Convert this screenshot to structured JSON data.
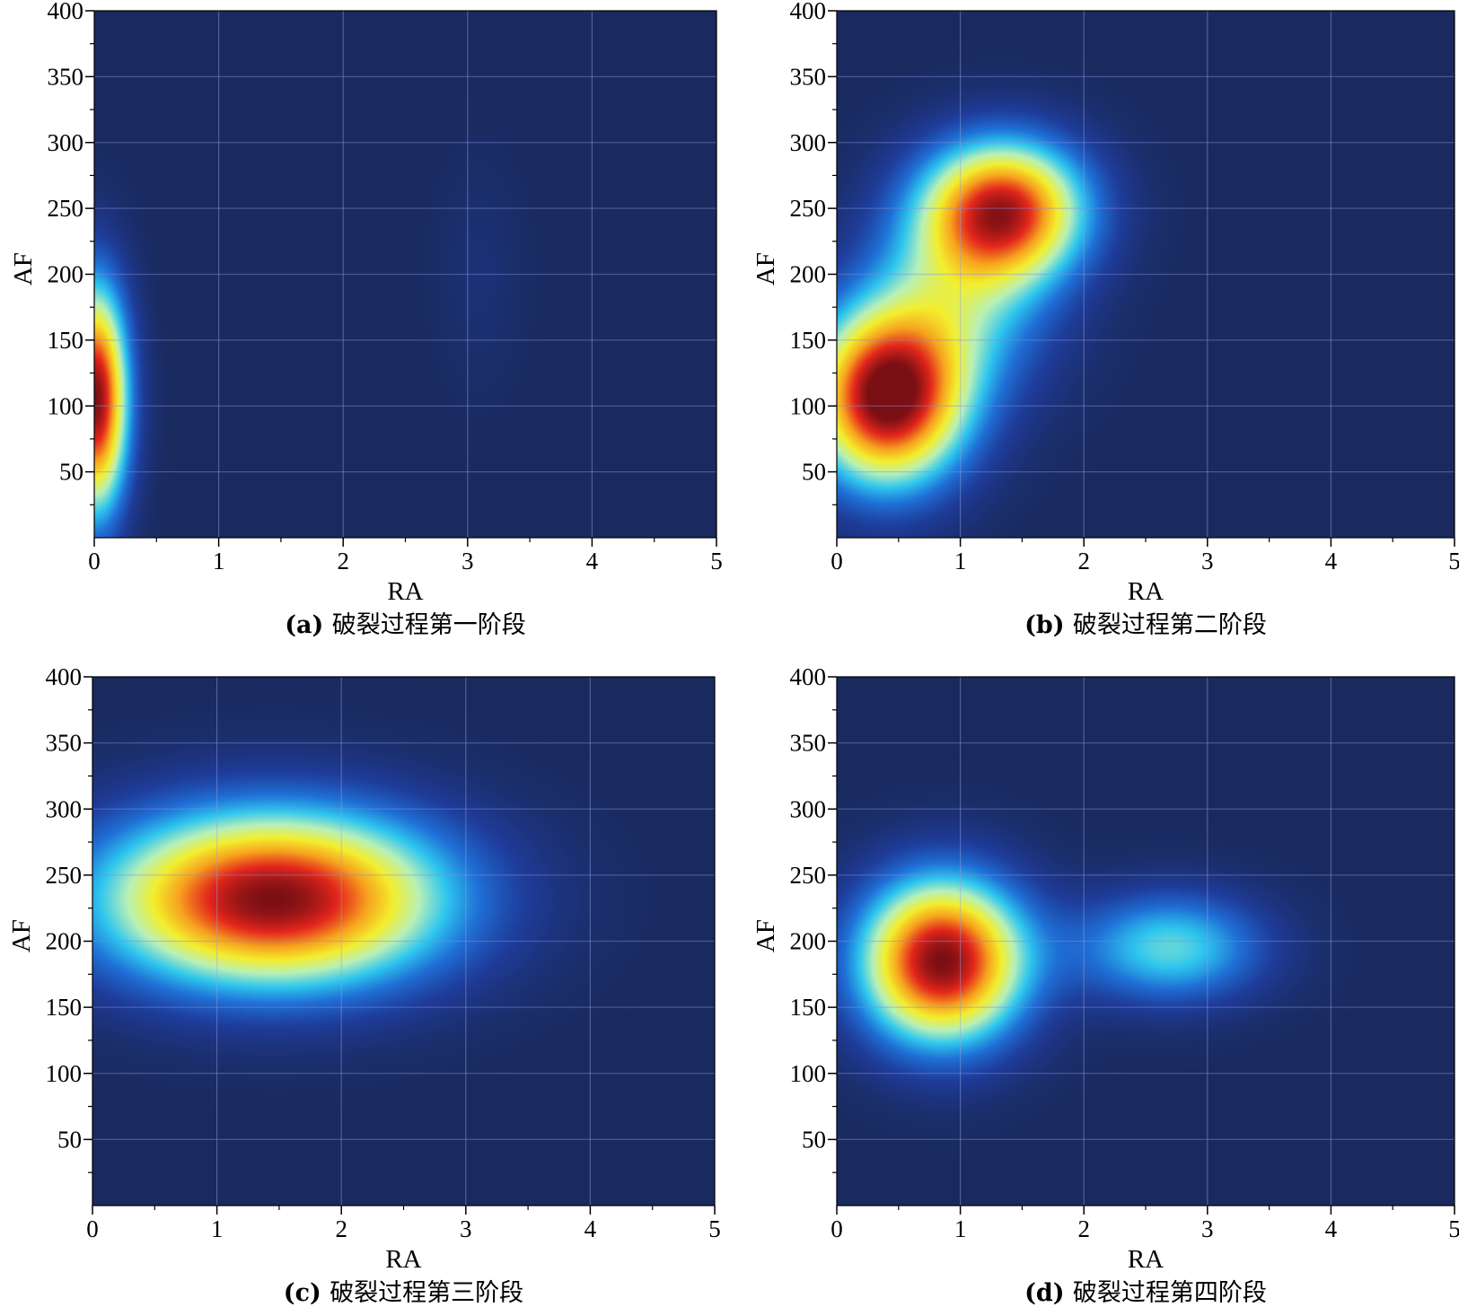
{
  "colormap": [
    "#1a2a5e",
    "#1e3c9a",
    "#1f6fd6",
    "#2ec6ef",
    "#b8f0b8",
    "#f3ef2e",
    "#f7a21e",
    "#e3261c",
    "#7a0f14"
  ],
  "chart_data": [
    {
      "type": "heatmap",
      "caption_letter": "(a)",
      "caption": "破裂过程第一阶段",
      "xlabel": "RA",
      "ylabel": "AF",
      "xlim": [
        0,
        5
      ],
      "ylim": [
        0,
        400
      ],
      "xticks": [
        0,
        1,
        2,
        3,
        4,
        5
      ],
      "yticks": [
        50,
        100,
        150,
        200,
        250,
        300,
        350,
        400
      ],
      "grid": true,
      "density_peaks": [
        {
          "x": 0.0,
          "y": 105,
          "sx": 0.19,
          "sy": 62,
          "weight": 1.0
        },
        {
          "x": 3.1,
          "y": 200,
          "sx": 0.25,
          "sy": 60,
          "weight": 0.05
        }
      ]
    },
    {
      "type": "heatmap",
      "caption_letter": "(b)",
      "caption": "破裂过程第二阶段",
      "xlabel": "RA",
      "ylabel": "AF",
      "xlim": [
        0,
        5
      ],
      "ylim": [
        0,
        400
      ],
      "xticks": [
        0,
        1,
        2,
        3,
        4,
        5
      ],
      "yticks": [
        50,
        100,
        150,
        200,
        250,
        300,
        350,
        400
      ],
      "grid": true,
      "density_peaks": [
        {
          "x": 0.4,
          "y": 105,
          "sx": 0.45,
          "sy": 48,
          "weight": 1.0
        },
        {
          "x": 1.35,
          "y": 250,
          "sx": 0.48,
          "sy": 38,
          "weight": 0.85
        },
        {
          "x": 1.0,
          "y": 180,
          "sx": 0.55,
          "sy": 55,
          "weight": 0.35
        }
      ]
    },
    {
      "type": "heatmap",
      "caption_letter": "(c)",
      "caption": "破裂过程第三阶段",
      "xlabel": "RA",
      "ylabel": "AF",
      "xlim": [
        0,
        5
      ],
      "ylim": [
        0,
        400
      ],
      "xticks": [
        0,
        1,
        2,
        3,
        4,
        5
      ],
      "yticks": [
        50,
        100,
        150,
        200,
        250,
        300,
        350,
        400
      ],
      "grid": true,
      "density_peaks": [
        {
          "x": 1.45,
          "y": 232,
          "sx": 1.0,
          "sy": 48,
          "weight": 1.0
        }
      ]
    },
    {
      "type": "heatmap",
      "caption_letter": "(d)",
      "caption": "破裂过程第四阶段",
      "xlabel": "RA",
      "ylabel": "AF",
      "xlim": [
        0,
        5
      ],
      "ylim": [
        0,
        400
      ],
      "xticks": [
        0,
        1,
        2,
        3,
        4,
        5
      ],
      "yticks": [
        50,
        100,
        150,
        200,
        250,
        300,
        350,
        400
      ],
      "grid": true,
      "density_peaks": [
        {
          "x": 0.85,
          "y": 185,
          "sx": 0.48,
          "sy": 45,
          "weight": 1.0
        },
        {
          "x": 2.7,
          "y": 195,
          "sx": 0.55,
          "sy": 30,
          "weight": 0.42
        }
      ]
    }
  ]
}
